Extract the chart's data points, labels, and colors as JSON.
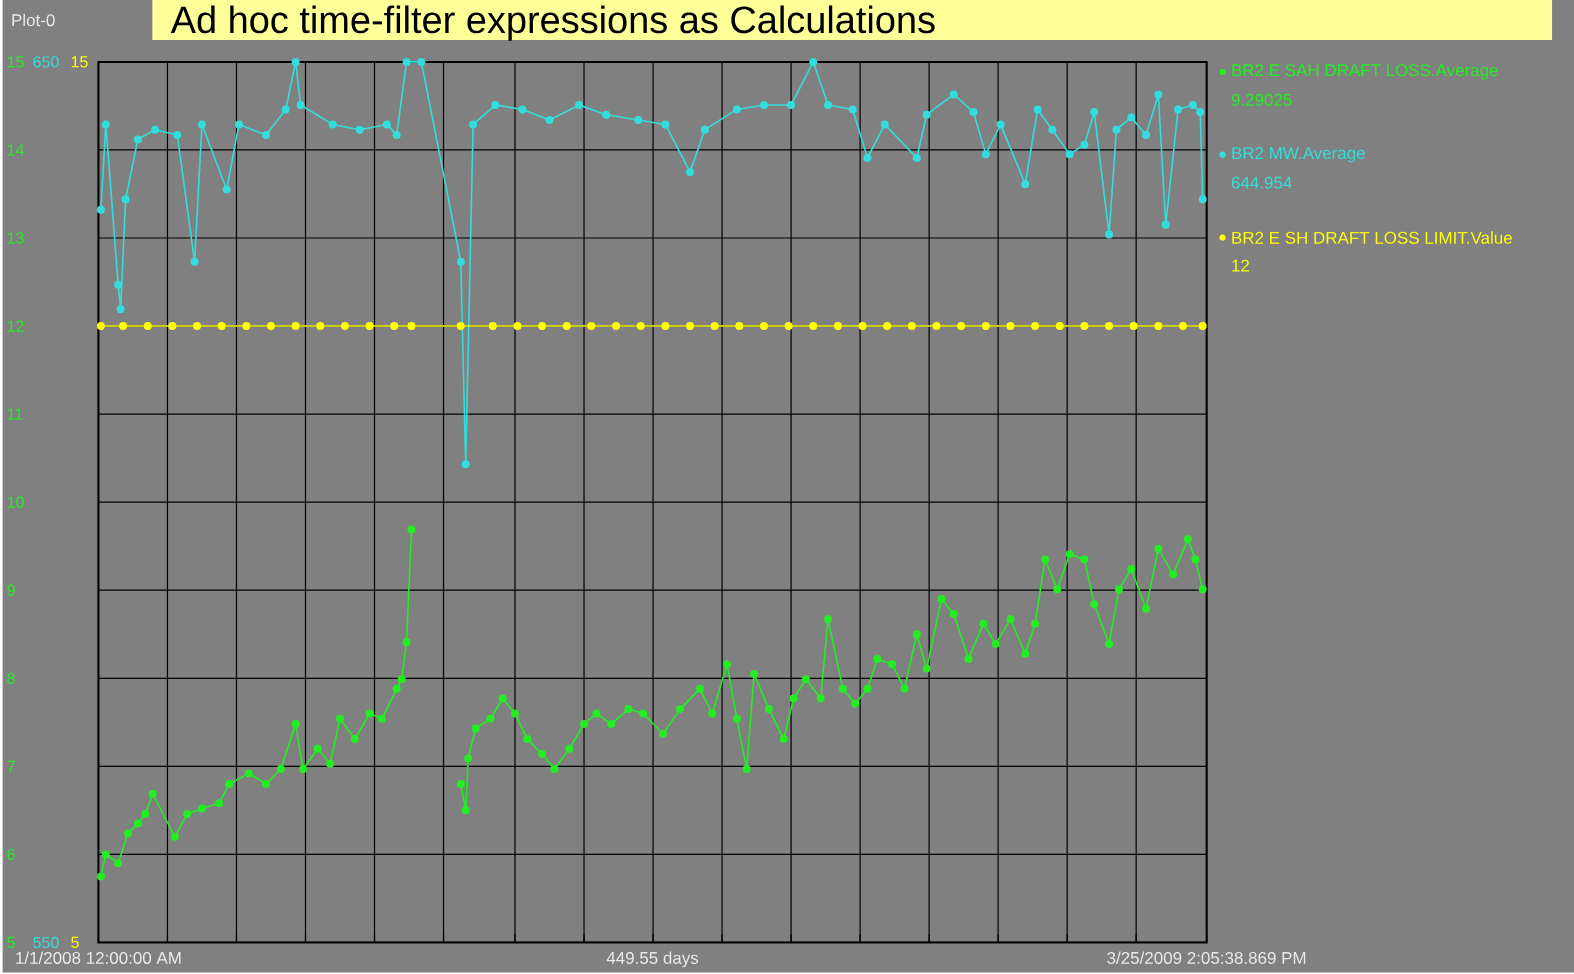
{
  "chart_data": {
    "type": "line",
    "title": "Ad hoc time-filter expressions as Calculations",
    "xlabel": "449.55 days",
    "annotations": [
      "Plot-0",
      "9.29025",
      "644.954",
      "12"
    ],
    "xlim": [
      "2008-01-01T00:00",
      "2009-03-25T14:05"
    ],
    "xticks": [
      {
        "value": "2008-01-01T00:00",
        "label": "1/1/2008 12:00:00 AM"
      },
      {
        "value": "2008-01-29",
        "label": null
      },
      {
        "value": "2008-02-26",
        "label": null
      },
      {
        "value": "2008-03-25",
        "label": null
      },
      {
        "value": "2008-04-22",
        "label": null
      },
      {
        "value": "2008-05-20",
        "label": null
      },
      {
        "value": "2008-06-18",
        "label": null
      },
      {
        "value": "2008-07-16",
        "label": null
      },
      {
        "value": "2008-08-13",
        "label": null
      },
      {
        "value": "2008-09-10",
        "label": null
      },
      {
        "value": "2008-10-08",
        "label": null
      },
      {
        "value": "2008-11-05",
        "label": null
      },
      {
        "value": "2008-12-03",
        "label": null
      },
      {
        "value": "2008-12-31",
        "label": null
      },
      {
        "value": "2009-01-28",
        "label": null
      },
      {
        "value": "2009-02-25",
        "label": null
      },
      {
        "value": "2009-03-25T14:05",
        "label": "3/25/2009 2:05:38.869 PM"
      }
    ],
    "ylim": [
      5,
      15
    ],
    "yticks": [
      5,
      6,
      7,
      8,
      9,
      10,
      11,
      12,
      13,
      14,
      15
    ],
    "y2lim": [
      550,
      650
    ],
    "y2ticks": [
      550,
      650
    ],
    "y3lim": [
      5,
      15
    ],
    "y3ticks": [
      5,
      15
    ],
    "grid": true,
    "legend": "right",
    "marker": "circle",
    "series": [
      {
        "name": "BR2 E SAH DRAFT LOSS.Average",
        "color": "#22ee22",
        "axis": "y",
        "x": [
          "2008-01-02",
          "2008-01-04",
          "2008-01-09",
          "2008-01-13",
          "2008-01-17",
          "2008-01-20",
          "2008-01-23",
          "2008-02-01",
          "2008-02-06",
          "2008-02-12",
          "2008-02-19",
          "2008-02-23",
          "2008-03-02",
          "2008-03-09",
          "2008-03-15",
          "2008-03-21",
          "2008-03-24",
          "2008-03-30",
          "2008-04-04",
          "2008-04-08",
          "2008-04-14",
          "2008-04-20",
          "2008-04-25",
          "2008-05-01",
          "2008-05-03",
          "2008-05-05",
          "2008-05-07",
          "2008-05-16",
          "2008-05-27",
          "2008-05-29",
          "2008-05-30",
          "2008-06-02",
          "2008-06-08",
          "2008-06-13",
          "2008-06-18",
          "2008-06-23",
          "2008-06-29",
          "2008-07-04",
          "2008-07-10",
          "2008-07-16",
          "2008-07-21",
          "2008-07-27",
          "2008-08-03",
          "2008-08-09",
          "2008-08-17",
          "2008-08-24",
          "2008-09-01",
          "2008-09-06",
          "2008-09-12",
          "2008-09-16",
          "2008-09-20",
          "2008-09-23",
          "2008-09-29",
          "2008-10-05",
          "2008-10-09",
          "2008-10-14",
          "2008-10-20",
          "2008-10-23",
          "2008-10-29",
          "2008-11-03",
          "2008-11-08",
          "2008-11-12",
          "2008-11-18",
          "2008-11-23",
          "2008-11-28",
          "2008-12-02",
          "2008-12-08",
          "2008-12-13",
          "2008-12-19",
          "2008-12-25",
          "2008-12-30",
          "2009-01-05",
          "2009-01-11",
          "2009-01-15",
          "2009-01-19",
          "2009-01-24",
          "2009-01-29",
          "2009-02-04",
          "2009-02-08",
          "2009-02-14",
          "2009-02-18",
          "2009-02-23",
          "2009-03-01",
          "2009-03-06",
          "2009-03-12",
          "2009-03-18",
          "2009-03-21",
          "2009-03-24"
        ],
        "values": [
          5.75,
          6.0,
          5.9,
          6.24,
          6.35,
          6.46,
          6.69,
          6.2,
          6.46,
          6.52,
          6.58,
          6.8,
          6.92,
          6.8,
          6.97,
          7.48,
          6.97,
          7.2,
          7.03,
          7.54,
          7.31,
          7.6,
          7.54,
          7.88,
          7.99,
          8.41,
          9.69,
          null,
          6.8,
          6.5,
          7.09,
          7.43,
          7.54,
          7.77,
          7.6,
          7.31,
          7.14,
          6.97,
          7.2,
          7.48,
          7.6,
          7.48,
          7.65,
          7.6,
          7.37,
          7.65,
          7.88,
          7.6,
          8.16,
          7.54,
          6.97,
          8.05,
          7.65,
          7.31,
          7.77,
          7.99,
          7.77,
          8.67,
          7.88,
          7.71,
          7.88,
          8.22,
          8.16,
          7.88,
          8.5,
          8.11,
          8.9,
          8.73,
          8.22,
          8.62,
          8.39,
          8.67,
          8.28,
          8.62,
          9.35,
          9.01,
          9.41,
          9.35,
          8.84,
          8.39,
          9.01,
          9.24,
          8.79,
          9.47,
          9.18,
          9.58,
          9.35,
          9.01
        ]
      },
      {
        "name": "BR2 MW.Average",
        "color": "#33dddd",
        "axis": "y2",
        "x": [
          "2008-01-02",
          "2008-01-04",
          "2008-01-09",
          "2008-01-10",
          "2008-01-12",
          "2008-01-17",
          "2008-01-24",
          "2008-02-02",
          "2008-02-09",
          "2008-02-12",
          "2008-02-22",
          "2008-02-27",
          "2008-03-09",
          "2008-03-17",
          "2008-03-21",
          "2008-03-23",
          "2008-04-05",
          "2008-04-16",
          "2008-04-27",
          "2008-05-01",
          "2008-05-05",
          "2008-05-11",
          "2008-05-27",
          "2008-05-29",
          "2008-06-01",
          "2008-06-10",
          "2008-06-21",
          "2008-07-02",
          "2008-07-14",
          "2008-07-25",
          "2008-08-07",
          "2008-08-18",
          "2008-08-28",
          "2008-09-03",
          "2008-09-16",
          "2008-09-27",
          "2008-10-08",
          "2008-10-17",
          "2008-10-23",
          "2008-11-02",
          "2008-11-08",
          "2008-11-15",
          "2008-11-28",
          "2008-12-02",
          "2008-12-13",
          "2008-12-21",
          "2008-12-26",
          "2009-01-01",
          "2009-01-11",
          "2009-01-16",
          "2009-01-22",
          "2009-01-29",
          "2009-02-04",
          "2009-02-08",
          "2009-02-14",
          "2009-02-17",
          "2009-02-23",
          "2009-03-01",
          "2009-03-06",
          "2009-03-09",
          "2009-03-14",
          "2009-03-20",
          "2009-03-23",
          "2009-03-24"
        ],
        "values": [
          633.2,
          642.9,
          624.7,
          621.9,
          634.4,
          641.2,
          642.3,
          641.7,
          627.3,
          642.9,
          635.5,
          642.9,
          641.7,
          644.6,
          650,
          645.1,
          642.9,
          642.3,
          642.9,
          641.7,
          650,
          650,
          627.3,
          604.3,
          642.9,
          645.1,
          644.6,
          643.4,
          645.1,
          644.0,
          643.4,
          642.9,
          637.5,
          642.3,
          644.6,
          645.1,
          645.1,
          650,
          645.1,
          644.6,
          639.1,
          642.9,
          639.1,
          644.0,
          646.3,
          644.3,
          639.5,
          642.9,
          636.1,
          644.6,
          642.3,
          639.5,
          640.6,
          644.3,
          630.4,
          642.3,
          643.7,
          641.7,
          646.3,
          631.5,
          644.6,
          645.1,
          644.3,
          634.4
        ]
      },
      {
        "name": "BR2 E SH DRAFT LOSS LIMIT.Value",
        "color": "#ffff00",
        "axis": "y3",
        "x": [
          "2008-01-02",
          "2008-01-11",
          "2008-01-21",
          "2008-01-31",
          "2008-02-10",
          "2008-02-20",
          "2008-03-01",
          "2008-03-11",
          "2008-03-21",
          "2008-03-31",
          "2008-04-10",
          "2008-04-20",
          "2008-04-30",
          "2008-05-07",
          "2008-05-27",
          "2008-06-09",
          "2008-06-19",
          "2008-06-29",
          "2008-07-09",
          "2008-07-19",
          "2008-07-29",
          "2008-08-08",
          "2008-08-18",
          "2008-08-28",
          "2008-09-07",
          "2008-09-17",
          "2008-09-27",
          "2008-10-07",
          "2008-10-17",
          "2008-10-27",
          "2008-11-06",
          "2008-11-16",
          "2008-11-26",
          "2008-12-06",
          "2008-12-16",
          "2008-12-26",
          "2009-01-05",
          "2009-01-15",
          "2009-01-25",
          "2009-02-04",
          "2009-02-14",
          "2009-02-24",
          "2009-03-06",
          "2009-03-16",
          "2009-03-24"
        ],
        "values": [
          12,
          12,
          12,
          12,
          12,
          12,
          12,
          12,
          12,
          12,
          12,
          12,
          12,
          12,
          12,
          12,
          12,
          12,
          12,
          12,
          12,
          12,
          12,
          12,
          12,
          12,
          12,
          12,
          12,
          12,
          12,
          12,
          12,
          12,
          12,
          12,
          12,
          12,
          12,
          12,
          12,
          12,
          12,
          12,
          12
        ]
      }
    ]
  }
}
